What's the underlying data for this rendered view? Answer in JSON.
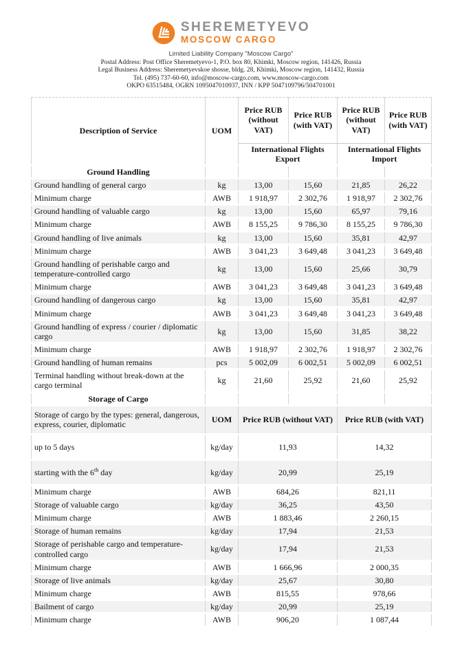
{
  "logo": {
    "brand": "SHEREMETYEVO",
    "subbrand": "MOSCOW CARGO",
    "icon": "sheremetyevo-wing-icon",
    "orange": "#ee7d1e",
    "gray": "#8d8f92"
  },
  "company": {
    "name": "Limited Liability Company \"Moscow Cargo\"",
    "lines": [
      "Postal Address: Post Office Sheremetyevo-1, P.O. box 80, Khimki, Moscow region, 141426, Russia",
      "Legal Business Address: Sheremetyevskoe shosse, bldg. 28, Khimki, Moscow region, 141432, Russia",
      "Tel. (495) 737-60-60, info@moscow-cargo.com, www.moscow-cargo.com",
      "OKPO 63515484, OGRN 1095047010937, INN / KPP 5047109796/504701001"
    ]
  },
  "table": {
    "shaded_color": "#f2f2f2",
    "header": {
      "desc": "Description of Service",
      "uom": "UOM",
      "price_cols": [
        "Price RUB (without VAT)",
        "Price RUB (with VAT)",
        "Price RUB (without VAT)",
        "Price RUB (with VAT)"
      ],
      "groups": [
        "International Flights Export",
        "International Flights Import"
      ]
    },
    "rows": [
      {
        "type": "section",
        "label": "Ground Handling"
      },
      {
        "type": "data",
        "shaded": true,
        "desc": "Ground handling of general cargo",
        "uom": "kg",
        "v": [
          "13,00",
          "15,60",
          "21,85",
          "26,22"
        ]
      },
      {
        "type": "data",
        "shaded": false,
        "desc": "Minimum charge",
        "uom": "AWB",
        "v": [
          "1 918,97",
          "2 302,76",
          "1 918,97",
          "2 302,76"
        ]
      },
      {
        "type": "data",
        "shaded": true,
        "desc": "Ground handling of valuable cargo",
        "uom": "kg",
        "v": [
          "13,00",
          "15,60",
          "65,97",
          "79,16"
        ]
      },
      {
        "type": "data",
        "shaded": false,
        "desc": "Minimum charge",
        "uom": "AWB",
        "v": [
          "8 155,25",
          "9 786,30",
          "8 155,25",
          "9 786,30"
        ]
      },
      {
        "type": "data",
        "shaded": true,
        "desc": "Ground handling of  live animals",
        "uom": "kg",
        "v": [
          "13,00",
          "15,60",
          "35,81",
          "42,97"
        ]
      },
      {
        "type": "data",
        "shaded": false,
        "desc": "Minimum charge",
        "uom": "AWB",
        "v": [
          "3 041,23",
          "3 649,48",
          "3 041,23",
          "3 649,48"
        ]
      },
      {
        "type": "data",
        "shaded": true,
        "desc": "Ground handling of perishable cargo and temperature-controlled cargo",
        "uom": "kg",
        "v": [
          "13,00",
          "15,60",
          "25,66",
          "30,79"
        ]
      },
      {
        "type": "data",
        "shaded": false,
        "desc": "Minimum charge",
        "uom": "AWB",
        "v": [
          "3 041,23",
          "3 649,48",
          "3 041,23",
          "3 649,48"
        ]
      },
      {
        "type": "data",
        "shaded": true,
        "desc": "Ground handling of dangerous cargo",
        "uom": "kg",
        "v": [
          "13,00",
          "15,60",
          "35,81",
          "42,97"
        ]
      },
      {
        "type": "data",
        "shaded": false,
        "desc": "Minimum charge",
        "uom": "AWB",
        "v": [
          "3 041,23",
          "3 649,48",
          "3 041,23",
          "3 649,48"
        ]
      },
      {
        "type": "data",
        "shaded": true,
        "desc": "Ground handling of express / courier / diplomatic cargo",
        "uom": "kg",
        "v": [
          "13,00",
          "15,60",
          "31,85",
          "38,22"
        ]
      },
      {
        "type": "data",
        "shaded": false,
        "desc": "Minimum charge",
        "uom": "AWB",
        "v": [
          "1 918,97",
          "2 302,76",
          "1 918,97",
          "2 302,76"
        ]
      },
      {
        "type": "data",
        "shaded": true,
        "desc": "Ground handling of human remains",
        "uom": "pcs",
        "v": [
          "5 002,09",
          "6 002,51",
          "5 002,09",
          "6 002,51"
        ]
      },
      {
        "type": "data",
        "shaded": false,
        "desc": "Terminal handling without break-down at the cargo terminal",
        "uom": "kg",
        "v": [
          "21,60",
          "25,92",
          "21,60",
          "25,92"
        ]
      },
      {
        "type": "section",
        "label": "Storage of Cargo"
      },
      {
        "type": "subheader",
        "shaded": true,
        "desc": "Storage of cargo by the types: general, dangerous, express, courier, diplomatic",
        "uom": "UOM",
        "cols": [
          "Price RUB (without VAT)",
          "Price RUB (with VAT)"
        ]
      },
      {
        "type": "data2",
        "shaded": false,
        "tall": true,
        "desc": "up to 5 days",
        "uom": "kg/day",
        "v": [
          "11,93",
          "14,32"
        ]
      },
      {
        "type": "data2",
        "shaded": true,
        "tall": true,
        "desc_parts": [
          "starting with the 6",
          "th",
          " day"
        ],
        "uom": "kg/day",
        "v": [
          "20,99",
          "25,19"
        ]
      },
      {
        "type": "data2",
        "shaded": false,
        "desc": "Minimum charge",
        "uom": "AWB",
        "v": [
          "684,26",
          "821,11"
        ]
      },
      {
        "type": "data2",
        "shaded": true,
        "desc": "Storage of valuable cargo",
        "uom": "kg/day",
        "v": [
          "36,25",
          "43,50"
        ]
      },
      {
        "type": "data2",
        "shaded": false,
        "desc": "Minimum charge",
        "uom": "AWB",
        "v": [
          "1 883,46",
          "2 260,15"
        ]
      },
      {
        "type": "data2",
        "shaded": true,
        "desc": "Storage of human remains",
        "uom": "kg/day",
        "v": [
          "17,94",
          "21,53"
        ]
      },
      {
        "type": "data2",
        "shaded": true,
        "desc": "Storage of perishable cargo and temperature-controlled cargo",
        "uom": "kg/day",
        "v": [
          "17,94",
          "21,53"
        ]
      },
      {
        "type": "data2",
        "shaded": false,
        "desc": "Minimum charge",
        "uom": "AWB",
        "v": [
          "1 666,96",
          "2 000,35"
        ]
      },
      {
        "type": "data2",
        "shaded": true,
        "desc": "Storage of  live animals",
        "uom": "kg/day",
        "v": [
          "25,67",
          "30,80"
        ]
      },
      {
        "type": "data2",
        "shaded": false,
        "desc": "Minimum charge",
        "uom": "AWB",
        "v": [
          "815,55",
          "978,66"
        ]
      },
      {
        "type": "data2",
        "shaded": true,
        "desc": "Bailment of cargo",
        "uom": "kg/day",
        "v": [
          "20,99",
          "25,19"
        ]
      },
      {
        "type": "data2",
        "shaded": false,
        "desc": "Minimum charge",
        "uom": "AWB",
        "v": [
          "906,20",
          "1 087,44"
        ]
      }
    ]
  }
}
